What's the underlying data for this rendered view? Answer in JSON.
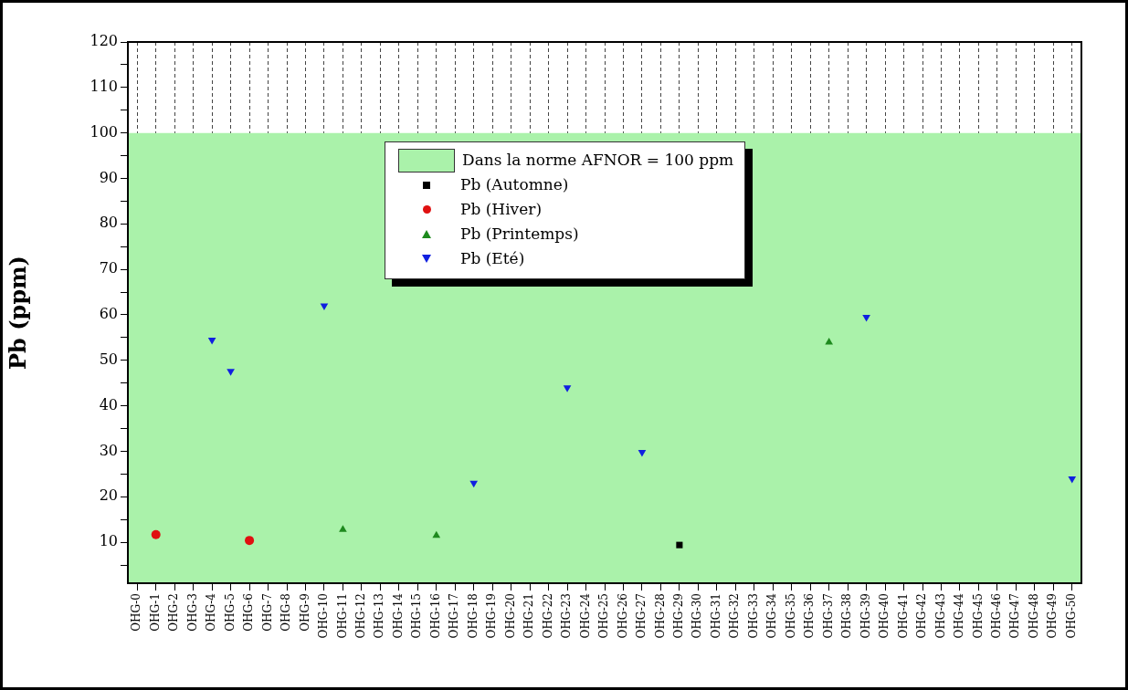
{
  "chart_data": {
    "type": "scatter",
    "ylabel": "Pb (ppm)",
    "categories": [
      "OHG-0",
      "OHG-1",
      "OHG-2",
      "OHG-3",
      "OHG-4",
      "OHG-5",
      "OHG-6",
      "OHG-7",
      "OHG-8",
      "OHG-9",
      "OHG-10",
      "OHG-11",
      "OHG-12",
      "OHG-13",
      "OHG-14",
      "OHG-15",
      "OHG-16",
      "OHG-17",
      "OHG-18",
      "OHG-19",
      "OHG-20",
      "OHG-21",
      "OHG-22",
      "OHG-23",
      "OHG-24",
      "OHG-25",
      "OHG-26",
      "OHG-27",
      "OHG-28",
      "OHG-29",
      "OHG-30",
      "OHG-31",
      "OHG-32",
      "OHG-33",
      "OHG-34",
      "OHG-35",
      "OHG-36",
      "OHG-37",
      "OHG-38",
      "OHG-39",
      "OHG-40",
      "OHG-41",
      "OHG-42",
      "OHG-43",
      "OHG-44",
      "OHG-45",
      "OHG-46",
      "OHG-47",
      "OHG-48",
      "OHG-49",
      "OHG-50"
    ],
    "series": [
      {
        "name": "Pb (Automne)",
        "color": "#000000",
        "marker": "square",
        "values": [
          null,
          null,
          null,
          null,
          null,
          null,
          null,
          null,
          null,
          null,
          null,
          null,
          null,
          null,
          null,
          null,
          null,
          null,
          null,
          null,
          null,
          null,
          null,
          null,
          null,
          null,
          null,
          null,
          null,
          9.4,
          null,
          null,
          null,
          null,
          null,
          null,
          null,
          null,
          null,
          null,
          null,
          null,
          null,
          null,
          null,
          null,
          null,
          null,
          null,
          null,
          null
        ]
      },
      {
        "name": "Pb (Hiver)",
        "color": "#e01010",
        "marker": "circle",
        "values": [
          null,
          11.7,
          null,
          null,
          null,
          null,
          10.4,
          null,
          null,
          null,
          null,
          null,
          null,
          null,
          null,
          null,
          null,
          null,
          null,
          null,
          null,
          null,
          null,
          null,
          null,
          null,
          null,
          null,
          null,
          null,
          null,
          null,
          null,
          null,
          null,
          null,
          null,
          null,
          null,
          null,
          null,
          null,
          null,
          null,
          null,
          null,
          null,
          null,
          null,
          null,
          null
        ]
      },
      {
        "name": "Pb (Printemps)",
        "color": "#1e8a1e",
        "marker": "triangle",
        "values": [
          null,
          null,
          null,
          null,
          null,
          null,
          null,
          null,
          null,
          null,
          null,
          12.8,
          null,
          null,
          null,
          null,
          11.5,
          null,
          null,
          null,
          null,
          null,
          null,
          null,
          null,
          null,
          null,
          null,
          null,
          null,
          null,
          null,
          null,
          null,
          null,
          null,
          null,
          54,
          null,
          null,
          null,
          null,
          null,
          null,
          null,
          null,
          null,
          null,
          null,
          null,
          null
        ]
      },
      {
        "name": "Pb (Eté)",
        "color": "#1020e0",
        "marker": "triangle_down",
        "values": [
          null,
          null,
          null,
          null,
          54.5,
          47.6,
          null,
          null,
          null,
          null,
          62,
          null,
          null,
          null,
          null,
          null,
          null,
          null,
          23,
          null,
          null,
          null,
          null,
          44,
          null,
          null,
          null,
          29.8,
          null,
          null,
          null,
          null,
          null,
          null,
          null,
          null,
          null,
          null,
          null,
          59.5,
          null,
          null,
          null,
          null,
          null,
          null,
          null,
          null,
          null,
          null,
          24
        ]
      }
    ],
    "ylim": [
      1,
      120
    ],
    "yticks": [
      {
        "value": 5,
        "label": null
      },
      10,
      {
        "value": 15,
        "label": null
      },
      20,
      {
        "value": 25,
        "label": null
      },
      30,
      {
        "value": 35,
        "label": null
      },
      40,
      {
        "value": 45,
        "label": null
      },
      50,
      {
        "value": 55,
        "label": null
      },
      60,
      {
        "value": 65,
        "label": null
      },
      70,
      {
        "value": 75,
        "label": null
      },
      80,
      {
        "value": 85,
        "label": null
      },
      90,
      {
        "value": 95,
        "label": null
      },
      100,
      {
        "value": 105,
        "label": null
      },
      110,
      {
        "value": 115,
        "label": null
      },
      120
    ],
    "bands": [
      {
        "axis": "y",
        "from": 1,
        "to": 100,
        "label": "Dans la norme AFNOR = 100 ppm",
        "color": "#aaf2aa"
      }
    ],
    "grid": "x",
    "legend": "top"
  }
}
